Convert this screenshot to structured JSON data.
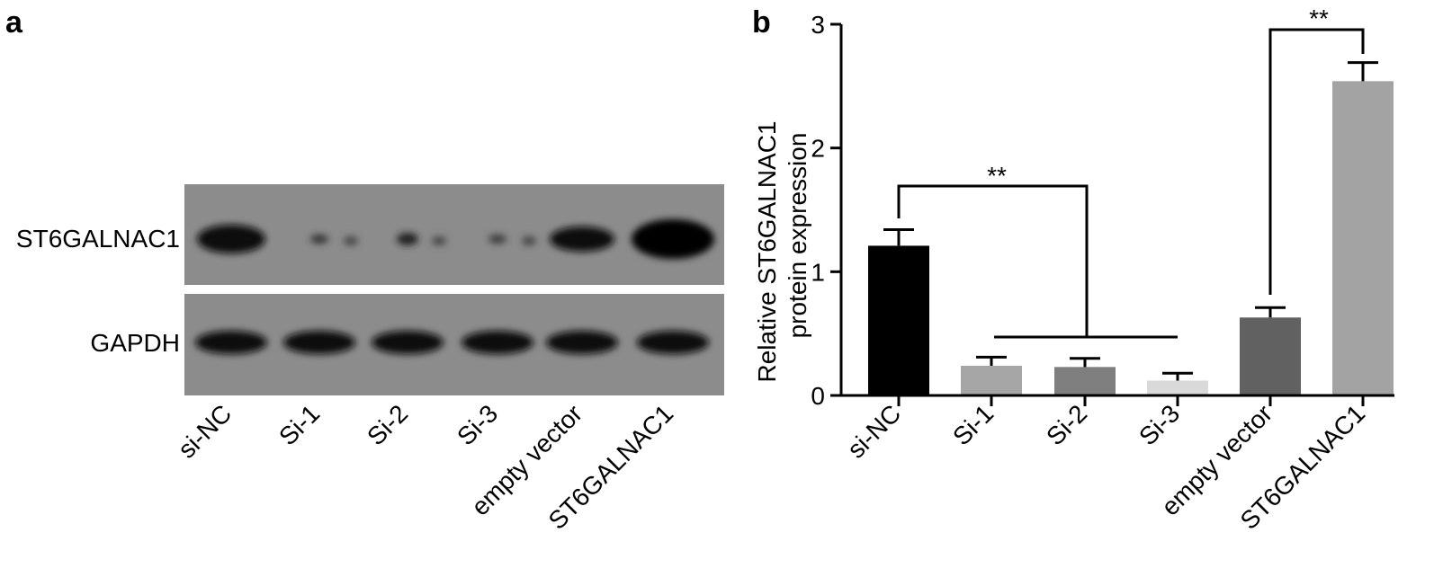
{
  "panel_labels": [
    "a",
    "b"
  ],
  "blot": {
    "rows": [
      "ST6GALNAC1",
      "GAPDH"
    ],
    "lanes": [
      "si-NC",
      "Si-1",
      "Si-2",
      "Si-3",
      "empty vector",
      "ST6GALNAC1"
    ]
  },
  "chart_data": {
    "type": "bar",
    "y_label": [
      "Relative ST6GALNAC1",
      "protein expression"
    ],
    "categories": [
      "si-NC",
      "Si-1",
      "Si-2",
      "Si-3",
      "empty vector",
      "ST6GALNAC1"
    ],
    "values": [
      1.21,
      0.24,
      0.23,
      0.12,
      0.63,
      2.54
    ],
    "errors": [
      0.13,
      0.07,
      0.07,
      0.06,
      0.08,
      0.15
    ],
    "colors": [
      "#000000",
      "#a6a6a6",
      "#7f7f7f",
      "#d9d9d9",
      "#616161",
      "#a3a3a3"
    ],
    "ylim": [
      0,
      3
    ],
    "yticks": [
      0,
      1,
      2,
      3
    ],
    "annotations": [
      "**",
      "**"
    ]
  }
}
